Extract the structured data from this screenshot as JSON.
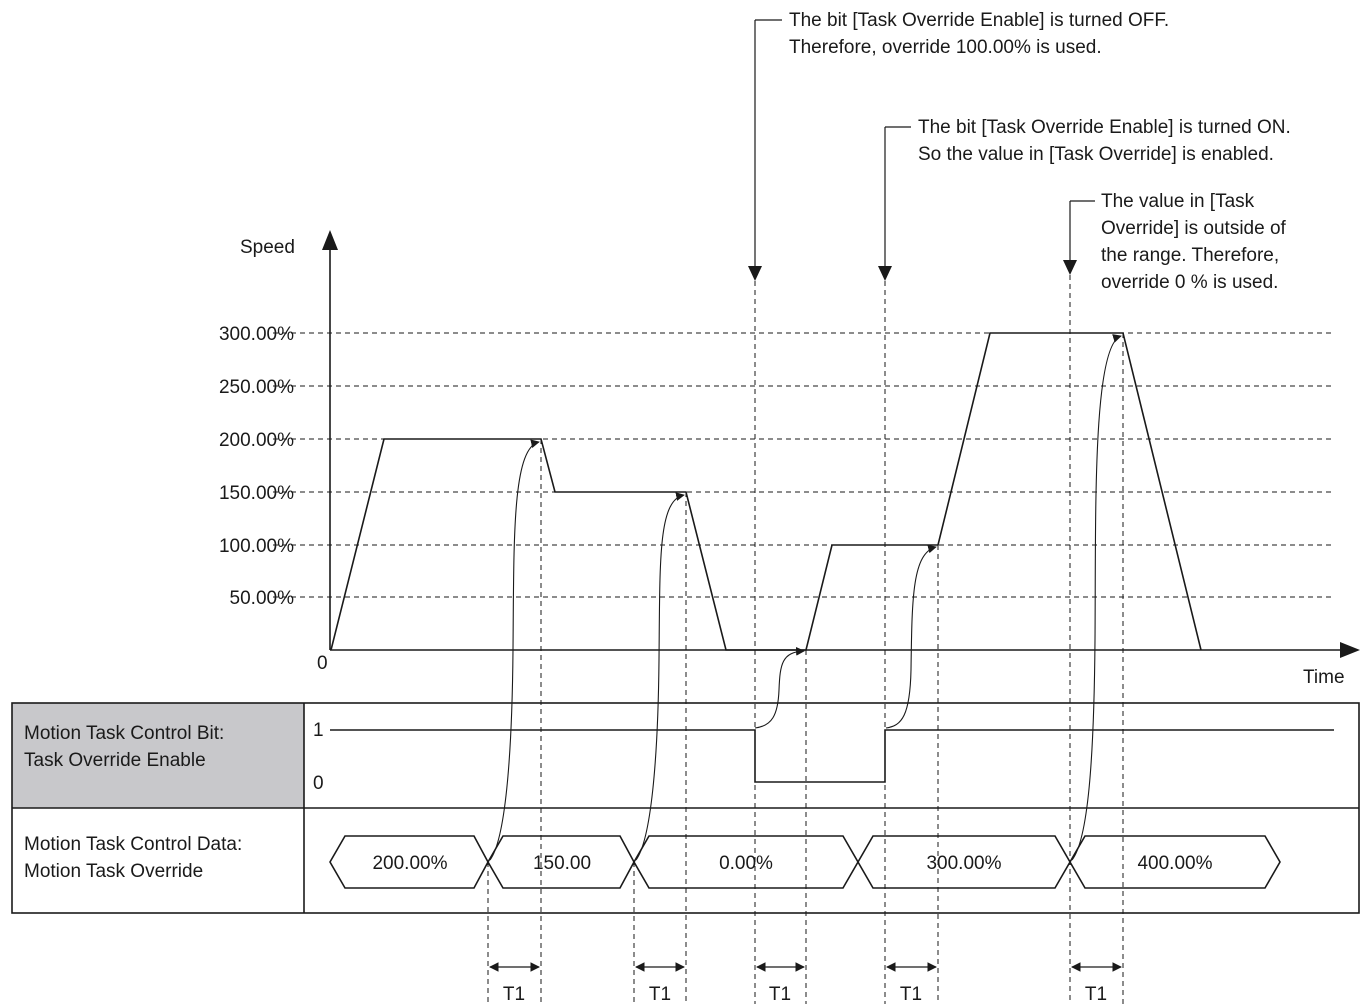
{
  "axes": {
    "y_label": "Speed",
    "x_label": "Time",
    "origin_label": "0",
    "y_ticks": [
      "300.00%",
      "250.00%",
      "200.00%",
      "150.00%",
      "100.00%",
      "50.00%"
    ]
  },
  "callouts": [
    {
      "lines": [
        "The bit [Task Override Enable] is turned OFF.",
        "Therefore, override 100.00% is used."
      ]
    },
    {
      "lines": [
        "The bit [Task Override Enable] is turned ON.",
        "So the value in [Task Override] is enabled."
      ]
    },
    {
      "lines": [
        "The value in [Task",
        "Override] is outside of",
        "the range. Therefore,",
        "override 0 % is used."
      ]
    }
  ],
  "rows": {
    "bit": {
      "label_lines": [
        "Motion Task Control Bit:",
        "Task Override Enable"
      ],
      "level_high": "1",
      "level_low": "0"
    },
    "data": {
      "label_lines": [
        "Motion Task Control Data:",
        "Motion Task Override"
      ]
    }
  },
  "override_values": [
    "200.00%",
    "150.00",
    "0.00%",
    "300.00%",
    "400.00%"
  ],
  "delay_labels": [
    "T1",
    "T1",
    "T1",
    "T1",
    "T1"
  ],
  "colors": {
    "label_cell_bg": "#c8c8cb",
    "line": "#1a1a1a"
  }
}
